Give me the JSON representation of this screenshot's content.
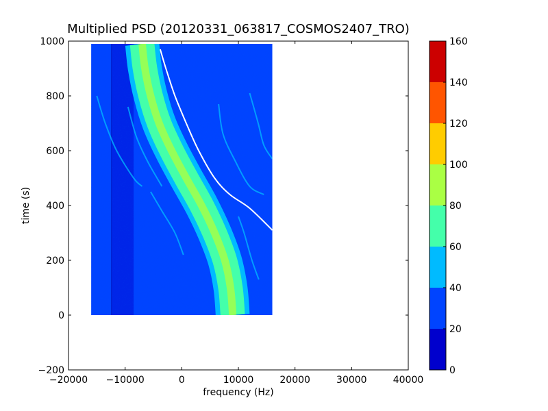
{
  "chart_data": {
    "type": "heatmap",
    "title": "Multiplied PSD (20120331_063817_COSMOS2407_TRO)",
    "xlabel": "frequency (Hz)",
    "ylabel": "time (s)",
    "xlim": [
      -20000,
      40000
    ],
    "ylim": [
      -200,
      1000
    ],
    "x_ticks": [
      -20000,
      -10000,
      0,
      10000,
      20000,
      30000,
      40000
    ],
    "x_tick_labels": [
      "−20000",
      "−10000",
      "0",
      "10000",
      "20000",
      "30000",
      "40000"
    ],
    "y_ticks": [
      -200,
      0,
      200,
      400,
      600,
      800,
      1000
    ],
    "y_tick_labels": [
      "−200",
      "0",
      "200",
      "400",
      "600",
      "800",
      "1000"
    ],
    "data_extent": {
      "x": [
        -16000,
        16000
      ],
      "y": [
        0,
        990
      ]
    },
    "colorbar": {
      "ticks": [
        0,
        20,
        40,
        60,
        80,
        100,
        120,
        140,
        160
      ],
      "tick_labels": [
        "0",
        "20",
        "40",
        "60",
        "80",
        "100",
        "120",
        "140",
        "160"
      ],
      "levels": [
        {
          "range": [
            0,
            20
          ],
          "color": "#0000cd"
        },
        {
          "range": [
            20,
            40
          ],
          "color": "#0044ff"
        },
        {
          "range": [
            40,
            60
          ],
          "color": "#00bbff"
        },
        {
          "range": [
            60,
            80
          ],
          "color": "#44ffaa"
        },
        {
          "range": [
            80,
            100
          ],
          "color": "#aaff44"
        },
        {
          "range": [
            100,
            120
          ],
          "color": "#ffcc00"
        },
        {
          "range": [
            120,
            140
          ],
          "color": "#ff5500"
        },
        {
          "range": [
            140,
            160
          ],
          "color": "#cc0000"
        }
      ]
    },
    "background_level_color": "#0044ff",
    "main_trace": {
      "points": [
        {
          "t": 990,
          "f": -7000
        },
        {
          "t": 900,
          "f": -6500
        },
        {
          "t": 800,
          "f": -5500
        },
        {
          "t": 700,
          "f": -4000
        },
        {
          "t": 600,
          "f": -1800
        },
        {
          "t": 500,
          "f": 800
        },
        {
          "t": 400,
          "f": 3500
        },
        {
          "t": 300,
          "f": 5800
        },
        {
          "t": 200,
          "f": 7600
        },
        {
          "t": 100,
          "f": 8600
        },
        {
          "t": 0,
          "f": 9000
        }
      ],
      "width_hz": 6000,
      "edge_color": "#00bbff",
      "body_color": "#44ffaa",
      "core_color": "#aaff44"
    },
    "white_trace": {
      "points": [
        {
          "t": 970,
          "f": -3800
        },
        {
          "t": 900,
          "f": -2800
        },
        {
          "t": 800,
          "f": -1200
        },
        {
          "t": 700,
          "f": 800
        },
        {
          "t": 600,
          "f": 3000
        },
        {
          "t": 500,
          "f": 5800
        },
        {
          "t": 440,
          "f": 8500
        },
        {
          "t": 390,
          "f": 12000
        },
        {
          "t": 310,
          "f": 16000
        }
      ],
      "color": "#ffffff"
    },
    "faint_traces": [
      {
        "points": [
          {
            "t": 800,
            "f": -15000
          },
          {
            "t": 700,
            "f": -13500
          },
          {
            "t": 600,
            "f": -11500
          },
          {
            "t": 500,
            "f": -8500
          },
          {
            "t": 470,
            "f": -7000
          }
        ]
      },
      {
        "points": [
          {
            "t": 760,
            "f": -9500
          },
          {
            "t": 650,
            "f": -8000
          },
          {
            "t": 560,
            "f": -6000
          },
          {
            "t": 470,
            "f": -3500
          }
        ]
      },
      {
        "points": [
          {
            "t": 450,
            "f": -5500
          },
          {
            "t": 380,
            "f": -3500
          },
          {
            "t": 300,
            "f": -1200
          },
          {
            "t": 220,
            "f": 300
          }
        ]
      },
      {
        "points": [
          {
            "t": 770,
            "f": 6500
          },
          {
            "t": 660,
            "f": 7300
          },
          {
            "t": 560,
            "f": 9500
          },
          {
            "t": 470,
            "f": 12000
          },
          {
            "t": 440,
            "f": 14500
          }
        ]
      },
      {
        "points": [
          {
            "t": 360,
            "f": 10000
          },
          {
            "t": 300,
            "f": 11000
          },
          {
            "t": 200,
            "f": 12400
          },
          {
            "t": 130,
            "f": 13600
          }
        ]
      },
      {
        "points": [
          {
            "t": 810,
            "f": 12000
          },
          {
            "t": 700,
            "f": 13500
          },
          {
            "t": 620,
            "f": 14500
          },
          {
            "t": 570,
            "f": 16000
          }
        ]
      }
    ],
    "faint_trace_color": "#00bbff",
    "vertical_lines": [
      -12400
    ],
    "dark_band": {
      "f_range": [
        -12500,
        -8500
      ],
      "color": "#0000cd"
    },
    "grid": false
  }
}
